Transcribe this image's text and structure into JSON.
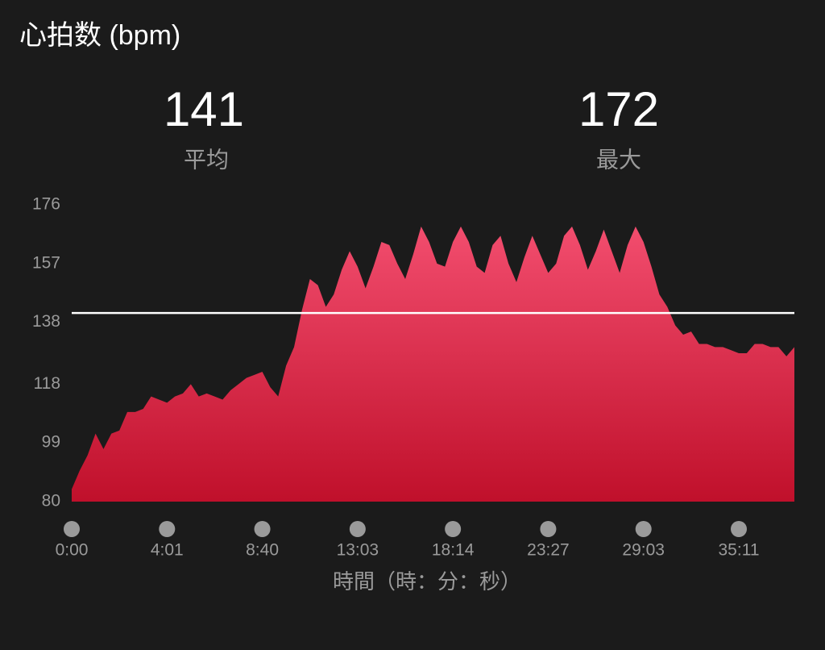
{
  "chart_data": {
    "type": "area",
    "title": "心拍数 (bpm)",
    "stats": [
      {
        "value": 141,
        "label": "平均"
      },
      {
        "value": 172,
        "label": "最大"
      }
    ],
    "x_label": "時間（時：分：秒）",
    "values": [
      84,
      90,
      95,
      102,
      97,
      102,
      103,
      109,
      109,
      110,
      114,
      113,
      112,
      114,
      115,
      118,
      114,
      115,
      114,
      113,
      116,
      118,
      120,
      121,
      122,
      117,
      114,
      124,
      130,
      142,
      152,
      150,
      143,
      147,
      155,
      161,
      156,
      149,
      156,
      164,
      163,
      157,
      152,
      160,
      169,
      164,
      157,
      156,
      164,
      169,
      164,
      156,
      154,
      163,
      166,
      157,
      151,
      159,
      166,
      160,
      154,
      157,
      166,
      169,
      163,
      155,
      161,
      168,
      161,
      154,
      163,
      169,
      164,
      156,
      147,
      143,
      137,
      134,
      135,
      131,
      131,
      130,
      130,
      129,
      128,
      128,
      131,
      131,
      130,
      130,
      127,
      130
    ],
    "color_top": "#f24d6e",
    "color_bottom": "#c0102b",
    "reference_line_color": "#ffffff",
    "ylim": [
      80,
      176
    ],
    "yticks": [
      80,
      99,
      118,
      138,
      157,
      176
    ],
    "xlim": [
      0,
      91
    ],
    "xticks": [
      {
        "value": 0,
        "label": "0:00"
      },
      {
        "value": 12,
        "label": "4:01"
      },
      {
        "value": 24,
        "label": "8:40"
      },
      {
        "value": 36,
        "label": "13:03"
      },
      {
        "value": 48,
        "label": "18:14"
      },
      {
        "value": 60,
        "label": "23:27"
      },
      {
        "value": 72,
        "label": "29:03"
      },
      {
        "value": 84,
        "label": "35:11"
      }
    ],
    "grid": false
  }
}
